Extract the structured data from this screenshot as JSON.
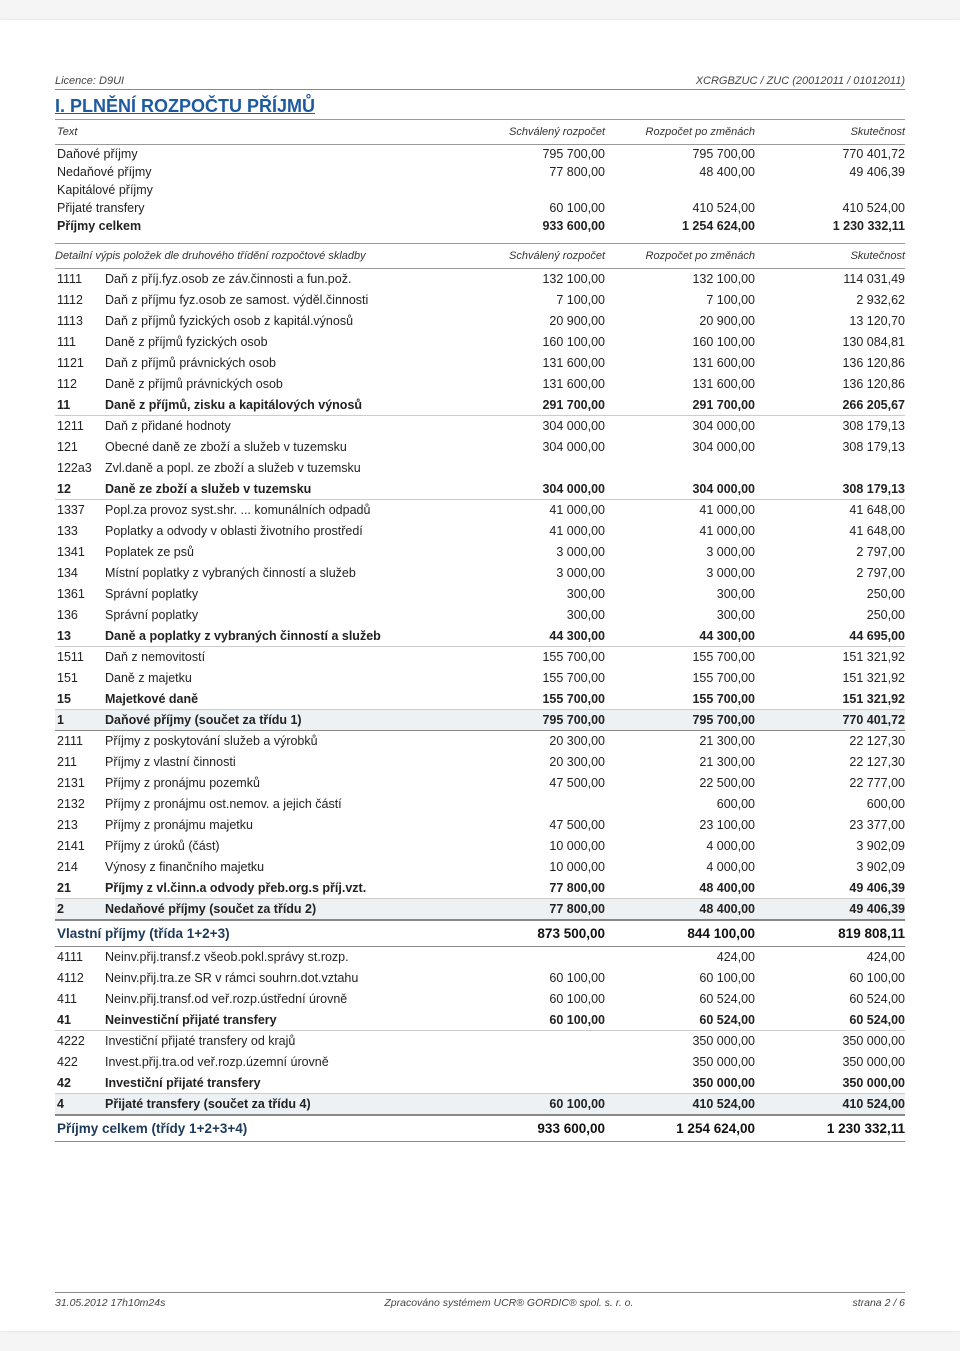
{
  "licence": "Licence: D9UI",
  "header_right": "XCRGBZUC / ZUC (20012011 / 01012011)",
  "section_title": "I. PLNĚNÍ ROZPOČTU PŘÍJMŮ",
  "columns": {
    "text": "Text",
    "approved": "Schválený rozpočet",
    "changes": "Rozpočet po změnách",
    "actual": "Skutečnost"
  },
  "detail_header_label": "Detailní výpis položek dle druhového třídění rozpočtové skladby",
  "summary_rows": [
    {
      "label": "Daňové příjmy",
      "approved": "795 700,00",
      "changes": "795 700,00",
      "actual": "770 401,72",
      "bold": false
    },
    {
      "label": "Nedaňové příjmy",
      "approved": "77 800,00",
      "changes": "48 400,00",
      "actual": "49 406,39",
      "bold": false
    },
    {
      "label": "Kapitálové příjmy",
      "approved": "",
      "changes": "",
      "actual": "",
      "bold": false
    },
    {
      "label": "Přijaté transfery",
      "approved": "60 100,00",
      "changes": "410 524,00",
      "actual": "410 524,00",
      "bold": false
    },
    {
      "label": "Příjmy celkem",
      "approved": "933 600,00",
      "changes": "1 254 624,00",
      "actual": "1 230 332,11",
      "bold": true
    }
  ],
  "detail_rows": [
    {
      "code": "1111",
      "text": "Daň z příj.fyz.osob ze záv.činnosti a fun.pož.",
      "approved": "132 100,00",
      "changes": "132 100,00",
      "actual": "114 031,49"
    },
    {
      "code": "1112",
      "text": "Daň z příjmu fyz.osob ze samost. výděl.činnosti",
      "approved": "7 100,00",
      "changes": "7 100,00",
      "actual": "2 932,62"
    },
    {
      "code": "1113",
      "text": "Daň z příjmů fyzických osob z kapitál.výnosů",
      "approved": "20 900,00",
      "changes": "20 900,00",
      "actual": "13 120,70"
    },
    {
      "code": "111",
      "text": "Daně z příjmů fyzických osob",
      "approved": "160 100,00",
      "changes": "160 100,00",
      "actual": "130 084,81"
    },
    {
      "code": "1121",
      "text": "Daň z příjmů právnických osob",
      "approved": "131 600,00",
      "changes": "131 600,00",
      "actual": "136 120,86"
    },
    {
      "code": "112",
      "text": "Daně z příjmů právnických osob",
      "approved": "131 600,00",
      "changes": "131 600,00",
      "actual": "136 120,86"
    },
    {
      "code": "11",
      "text": "Daně z příjmů, zisku a kapitálových výnosů",
      "approved": "291 700,00",
      "changes": "291 700,00",
      "actual": "266 205,67",
      "bold": true,
      "rule": "light"
    },
    {
      "code": "1211",
      "text": "Daň z přidané hodnoty",
      "approved": "304 000,00",
      "changes": "304 000,00",
      "actual": "308 179,13"
    },
    {
      "code": "121",
      "text": "Obecné daně ze zboží a služeb v tuzemsku",
      "approved": "304 000,00",
      "changes": "304 000,00",
      "actual": "308 179,13"
    },
    {
      "code": "122a3",
      "text": "Zvl.daně a popl. ze zboží a služeb v tuzemsku",
      "approved": "",
      "changes": "",
      "actual": ""
    },
    {
      "code": "12",
      "text": "Daně ze zboží a služeb v tuzemsku",
      "approved": "304 000,00",
      "changes": "304 000,00",
      "actual": "308 179,13",
      "bold": true,
      "rule": "light"
    },
    {
      "code": "1337",
      "text": "Popl.za provoz syst.shr. ... komunálních odpadů",
      "approved": "41 000,00",
      "changes": "41 000,00",
      "actual": "41 648,00"
    },
    {
      "code": "133",
      "text": "Poplatky a odvody v oblasti životního prostředí",
      "approved": "41 000,00",
      "changes": "41 000,00",
      "actual": "41 648,00"
    },
    {
      "code": "1341",
      "text": "Poplatek ze psů",
      "approved": "3 000,00",
      "changes": "3 000,00",
      "actual": "2 797,00"
    },
    {
      "code": "134",
      "text": "Místní poplatky z vybraných činností a služeb",
      "approved": "3 000,00",
      "changes": "3 000,00",
      "actual": "2 797,00"
    },
    {
      "code": "1361",
      "text": "Správní poplatky",
      "approved": "300,00",
      "changes": "300,00",
      "actual": "250,00"
    },
    {
      "code": "136",
      "text": "Správní poplatky",
      "approved": "300,00",
      "changes": "300,00",
      "actual": "250,00"
    },
    {
      "code": "13",
      "text": "Daně a poplatky z vybraných činností a služeb",
      "approved": "44 300,00",
      "changes": "44 300,00",
      "actual": "44 695,00",
      "bold": true,
      "rule": "light"
    },
    {
      "code": "1511",
      "text": "Daň z nemovitostí",
      "approved": "155 700,00",
      "changes": "155 700,00",
      "actual": "151 321,92"
    },
    {
      "code": "151",
      "text": "Daně z majetku",
      "approved": "155 700,00",
      "changes": "155 700,00",
      "actual": "151 321,92"
    },
    {
      "code": "15",
      "text": "Majetkové daně",
      "approved": "155 700,00",
      "changes": "155 700,00",
      "actual": "151 321,92",
      "bold": true,
      "rule": "light"
    },
    {
      "code": "1",
      "text": "Daňové příjmy (součet za třídu 1)",
      "approved": "795 700,00",
      "changes": "795 700,00",
      "actual": "770 401,72",
      "bold": true,
      "shaded": true,
      "rule": "strong"
    },
    {
      "code": "2111",
      "text": "Příjmy z poskytování služeb a výrobků",
      "approved": "20 300,00",
      "changes": "21 300,00",
      "actual": "22 127,30"
    },
    {
      "code": "211",
      "text": "Příjmy z vlastní činnosti",
      "approved": "20 300,00",
      "changes": "21 300,00",
      "actual": "22 127,30"
    },
    {
      "code": "2131",
      "text": "Příjmy z pronájmu pozemků",
      "approved": "47 500,00",
      "changes": "22 500,00",
      "actual": "22 777,00"
    },
    {
      "code": "2132",
      "text": "Příjmy z pronájmu ost.nemov. a jejich částí",
      "approved": "",
      "changes": "600,00",
      "actual": "600,00"
    },
    {
      "code": "213",
      "text": "Příjmy z pronájmu majetku",
      "approved": "47 500,00",
      "changes": "23 100,00",
      "actual": "23 377,00"
    },
    {
      "code": "2141",
      "text": "Příjmy z úroků (část)",
      "approved": "10 000,00",
      "changes": "4 000,00",
      "actual": "3 902,09"
    },
    {
      "code": "214",
      "text": "Výnosy z finančního majetku",
      "approved": "10 000,00",
      "changes": "4 000,00",
      "actual": "3 902,09"
    },
    {
      "code": "21",
      "text": "Příjmy z vl.činn.a odvody přeb.org.s příj.vzt.",
      "approved": "77 800,00",
      "changes": "48 400,00",
      "actual": "49 406,39",
      "bold": true,
      "rule": "light"
    },
    {
      "code": "2",
      "text": "Nedaňové příjmy (součet za třídu 2)",
      "approved": "77 800,00",
      "changes": "48 400,00",
      "actual": "49 406,39",
      "bold": true,
      "shaded": true,
      "rule": "strong"
    }
  ],
  "group_vlastni": {
    "label": "Vlastní příjmy (třída 1+2+3)",
    "approved": "873 500,00",
    "changes": "844 100,00",
    "actual": "819 808,11"
  },
  "detail_rows2": [
    {
      "code": "4111",
      "text": "Neinv.přij.transf.z všeob.pokl.správy st.rozp.",
      "approved": "",
      "changes": "424,00",
      "actual": "424,00"
    },
    {
      "code": "4112",
      "text": "Neinv.přij.tra.ze SR v rámci souhrn.dot.vztahu",
      "approved": "60 100,00",
      "changes": "60 100,00",
      "actual": "60 100,00"
    },
    {
      "code": "411",
      "text": "Neinv.přij.transf.od veř.rozp.ústřední úrovně",
      "approved": "60 100,00",
      "changes": "60 524,00",
      "actual": "60 524,00"
    },
    {
      "code": "41",
      "text": "Neinvestiční přijaté transfery",
      "approved": "60 100,00",
      "changes": "60 524,00",
      "actual": "60 524,00",
      "bold": true,
      "rule": "light"
    },
    {
      "code": "4222",
      "text": "Investiční přijaté transfery od krajů",
      "approved": "",
      "changes": "350 000,00",
      "actual": "350 000,00"
    },
    {
      "code": "422",
      "text": "Invest.přij.tra.od veř.rozp.územní úrovně",
      "approved": "",
      "changes": "350 000,00",
      "actual": "350 000,00"
    },
    {
      "code": "42",
      "text": "Investiční přijaté transfery",
      "approved": "",
      "changes": "350 000,00",
      "actual": "350 000,00",
      "bold": true,
      "rule": "light"
    },
    {
      "code": "4",
      "text": "Přijaté transfery (součet za třídu 4)",
      "approved": "60 100,00",
      "changes": "410 524,00",
      "actual": "410 524,00",
      "bold": true,
      "shaded": true,
      "rule": "strong"
    }
  ],
  "group_total": {
    "label": "Příjmy celkem (třídy 1+2+3+4)",
    "approved": "933 600,00",
    "changes": "1 254 624,00",
    "actual": "1 230 332,11"
  },
  "footer": {
    "left": "31.05.2012 17h10m24s",
    "center": "Zpracováno systémem UCR® GORDIC® spol. s. r. o.",
    "right": "strana 2 / 6"
  },
  "style": {
    "accent_color": "#1e5aa0",
    "shaded_bg": "#eef1f4",
    "rule_light": "#ccc",
    "rule_strong": "#888",
    "body_font_size": 12.5,
    "header_font_size": 11,
    "title_font_size": 18
  }
}
